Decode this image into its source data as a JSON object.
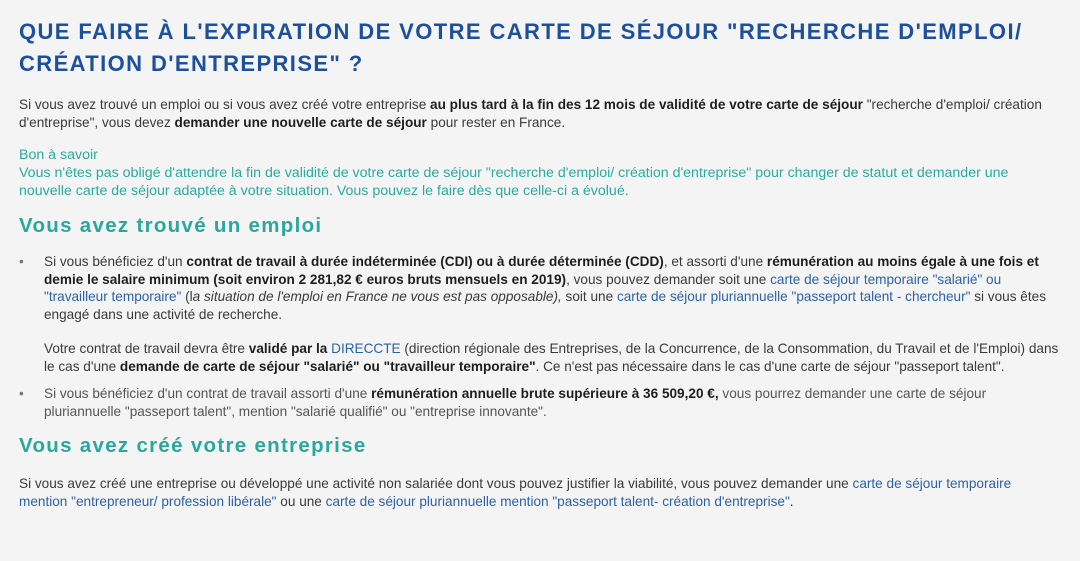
{
  "title": "Que faire à l'expiration de votre carte de séjour \"recherche d'emploi/ création d'entreprise\" ?",
  "intro": [
    {
      "t": "Si vous avez trouvé un emploi ou si vous avez créé votre entreprise "
    },
    {
      "t": "au plus tard à la fin des 12 mois de validité de votre carte de séjour",
      "s": "b"
    },
    {
      "t": " \"recherche d'emploi/ création d'entreprise\", vous devez "
    },
    {
      "t": "demander une nouvelle carte de séjour",
      "s": "b"
    },
    {
      "t": " pour rester en France."
    }
  ],
  "tip": {
    "title": "Bon à savoir",
    "text": "Vous n'êtes pas obligé d'attendre la fin de validité de votre carte de séjour \"recherche d'emploi/ création d'entreprise\" pour changer de statut et demander une nouvelle carte de séjour adaptée à votre situation. Vous pouvez le faire dès que celle-ci a évolué."
  },
  "section_job": {
    "heading": "Vous avez trouvé un emploi",
    "bullet_1": [
      {
        "t": "Si vous bénéficiez d'un "
      },
      {
        "t": "contrat de travail à durée indéterminée (CDI) ou à durée déterminée (CDD)",
        "s": "b"
      },
      {
        "t": ", et assorti d'une "
      },
      {
        "t": "rémunération au moins égale à une fois et demie le salaire minimum (soit environ 2 281,82 € euros bruts mensuels en 2019)",
        "s": "b"
      },
      {
        "t": ", vous pouvez demander soit une "
      },
      {
        "t": "carte de séjour temporaire \"salarié\" ou \"travailleur temporaire\"",
        "s": "a"
      },
      {
        "t": " (l"
      },
      {
        "t": "a situation de l'emploi en France ne vous est pas opposable),",
        "s": "i"
      },
      {
        "t": " soit une "
      },
      {
        "t": "carte de séjour pluriannuelle \"passeport talent - chercheur\"",
        "s": "a"
      },
      {
        "t": " si vous êtes engagé dans une activité de recherche."
      }
    ],
    "bullet_1_sub": [
      {
        "t": "Votre contrat de travail devra être "
      },
      {
        "t": "validé par la ",
        "s": "b"
      },
      {
        "t": "DIRECCTE",
        "s": "a"
      },
      {
        "t": " (direction régionale des Entreprises, de la Concurrence, de la Consommation, du Travail et de l'Emploi) dans le cas d'une "
      },
      {
        "t": "demande de carte de séjour \"salarié\" ou \"travailleur temporaire\"",
        "s": "b"
      },
      {
        "t": ". Ce n'est pas nécessaire dans le cas d'une carte de séjour \"passeport talent\"."
      }
    ],
    "bullet_2": [
      {
        "t": "Si vous bénéficiez d'un contrat de travail assorti d'une "
      },
      {
        "t": "rémunération annuelle brute supérieure à 36 509,20 €,",
        "s": "b"
      },
      {
        "t": " vous pourrez demander une carte de séjour pluriannuelle \"passeport talent\", mention \"salarié qualifié\" ou \"entreprise innovante\"."
      }
    ]
  },
  "section_company": {
    "heading": "Vous avez créé votre entreprise",
    "text": [
      {
        "t": "Si vous avez créé une entreprise ou développé une activité non salariée dont vous pouvez justifier la viabilité, vous pouvez demander une "
      },
      {
        "t": "carte de séjour temporaire mention \"entrepreneur/ profession libérale\"",
        "s": "a"
      },
      {
        "t": " ou une "
      },
      {
        "t": "carte de séjour pluriannuelle mention \"passeport talent- création d'entreprise\"",
        "s": "a"
      },
      {
        "t": "."
      }
    ]
  },
  "colors": {
    "title": "#1c4f9c",
    "accent": "#2aaba0",
    "link": "#2b62a8",
    "background": "#f4f4f4"
  }
}
